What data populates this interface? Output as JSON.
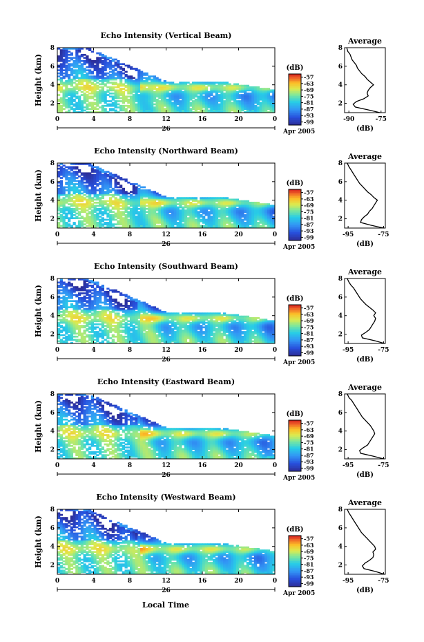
{
  "figure": {
    "time_axis_label": "Local Time",
    "date_day": "26",
    "date_label": "Apr 2005"
  },
  "chart_data": [
    {
      "type": "heatmap",
      "title": "Echo Intensity (Vertical Beam)",
      "ylabel": "Height (km)",
      "xlabel": "Local Time",
      "x_ticks": [
        "0",
        "4",
        "8",
        "12",
        "16",
        "20",
        "0"
      ],
      "y_ticks": [
        "2",
        "4",
        "6",
        "8"
      ],
      "xlim": [
        0,
        24
      ],
      "ylim": [
        1,
        8
      ],
      "colorbar": {
        "unit": "(dB)",
        "ticks": [
          "-57",
          "-63",
          "-69",
          "-75",
          "-81",
          "-87",
          "-93",
          "-99"
        ],
        "range": [
          -99,
          -57
        ]
      },
      "average_profile": {
        "title": "Average",
        "xlabel": "(dB)",
        "x_ticks": [
          "-90",
          "-75"
        ],
        "xlim": [
          -92,
          -73
        ],
        "y_ticks": [
          "2",
          "4",
          "6",
          "8"
        ],
        "ylim": [
          1,
          8
        ],
        "height_km": [
          1.0,
          1.3,
          1.6,
          1.9,
          2.2,
          2.5,
          2.8,
          3.1,
          3.4,
          3.7,
          4.0,
          4.3,
          4.6,
          4.9,
          5.2,
          5.5,
          5.8,
          6.1,
          6.4,
          6.7,
          7.0,
          7.3,
          7.6,
          8.0
        ],
        "db": [
          -75.5,
          -81,
          -87,
          -88,
          -86.5,
          -83,
          -81,
          -81.5,
          -81,
          -80,
          -78.5,
          -80,
          -81.5,
          -82.5,
          -84,
          -85,
          -86,
          -86.5,
          -87.5,
          -88.5,
          -89,
          -89.5,
          -90.5,
          -91
        ]
      }
    },
    {
      "type": "heatmap",
      "title": "Echo Intensity (Northward Beam)",
      "ylabel": "Height (km)",
      "xlabel": "Local Time",
      "x_ticks": [
        "0",
        "4",
        "8",
        "12",
        "16",
        "20",
        "0"
      ],
      "y_ticks": [
        "2",
        "4",
        "6",
        "8"
      ],
      "xlim": [
        0,
        24
      ],
      "ylim": [
        1,
        8
      ],
      "colorbar": {
        "unit": "(dB)",
        "ticks": [
          "-57",
          "-63",
          "-69",
          "-75",
          "-81",
          "-87",
          "-93",
          "-99"
        ],
        "range": [
          -99,
          -57
        ]
      },
      "average_profile": {
        "title": "Average",
        "xlabel": "(dB)",
        "x_ticks": [
          "-95",
          "-75"
        ],
        "xlim": [
          -97,
          -74
        ],
        "y_ticks": [
          "2",
          "4",
          "6",
          "8"
        ],
        "ylim": [
          1,
          8
        ],
        "height_km": [
          1.0,
          1.3,
          1.6,
          1.9,
          2.2,
          2.5,
          2.8,
          3.1,
          3.4,
          3.7,
          4.0,
          4.3,
          4.6,
          4.9,
          5.2,
          5.5,
          5.8,
          6.1,
          6.4,
          6.7,
          7.0,
          7.3,
          7.6,
          8.0
        ],
        "db": [
          -75,
          -82,
          -88,
          -87.5,
          -86,
          -84,
          -83,
          -81.5,
          -80.5,
          -79.5,
          -78.5,
          -80.5,
          -82,
          -84,
          -85.5,
          -87,
          -88.5,
          -89.5,
          -90.5,
          -91.5,
          -92.5,
          -93.5,
          -94.5,
          -95.5
        ]
      }
    },
    {
      "type": "heatmap",
      "title": "Echo Intensity (Southward Beam)",
      "ylabel": "Height (km)",
      "xlabel": "Local Time",
      "x_ticks": [
        "0",
        "4",
        "8",
        "12",
        "16",
        "20",
        "0"
      ],
      "y_ticks": [
        "2",
        "4",
        "6",
        "8"
      ],
      "xlim": [
        0,
        24
      ],
      "ylim": [
        1,
        8
      ],
      "colorbar": {
        "unit": "(dB)",
        "ticks": [
          "-57",
          "-63",
          "-69",
          "-75",
          "-81",
          "-87",
          "-93",
          "-99"
        ],
        "range": [
          -99,
          -57
        ]
      },
      "average_profile": {
        "title": "Average",
        "xlabel": "(dB)",
        "x_ticks": [
          "-95",
          "-75"
        ],
        "xlim": [
          -97,
          -74
        ],
        "y_ticks": [
          "2",
          "4",
          "6",
          "8"
        ],
        "ylim": [
          1,
          8
        ],
        "height_km": [
          1.0,
          1.3,
          1.6,
          1.9,
          2.2,
          2.5,
          2.8,
          3.1,
          3.4,
          3.7,
          4.0,
          4.3,
          4.6,
          4.9,
          5.2,
          5.5,
          5.8,
          6.1,
          6.4,
          6.7,
          7.0,
          7.3,
          7.6,
          8.0
        ],
        "db": [
          -74.5,
          -80,
          -87,
          -87.5,
          -85,
          -83,
          -82,
          -81,
          -80,
          -79.5,
          -80.5,
          -79.5,
          -81,
          -83,
          -85,
          -86.5,
          -88,
          -89,
          -90,
          -91,
          -92,
          -93.5,
          -94.5,
          -95.5
        ]
      }
    },
    {
      "type": "heatmap",
      "title": "Echo Intensity (Eastward Beam)",
      "ylabel": "Height (km)",
      "xlabel": "Local Time",
      "x_ticks": [
        "0",
        "4",
        "8",
        "12",
        "16",
        "20",
        "0"
      ],
      "y_ticks": [
        "2",
        "4",
        "6",
        "8"
      ],
      "xlim": [
        0,
        24
      ],
      "ylim": [
        1,
        8
      ],
      "colorbar": {
        "unit": "(dB)",
        "ticks": [
          "-57",
          "-63",
          "-69",
          "-75",
          "-81",
          "-87",
          "-93",
          "-99"
        ],
        "range": [
          -99,
          -57
        ]
      },
      "average_profile": {
        "title": "Average",
        "xlabel": "(dB)",
        "x_ticks": [
          "-95",
          "-75"
        ],
        "xlim": [
          -97,
          -74
        ],
        "y_ticks": [
          "2",
          "4",
          "6",
          "8"
        ],
        "ylim": [
          1,
          8
        ],
        "height_km": [
          1.0,
          1.3,
          1.6,
          1.9,
          2.2,
          2.5,
          2.8,
          3.1,
          3.4,
          3.7,
          4.0,
          4.3,
          4.6,
          4.9,
          5.2,
          5.5,
          5.8,
          6.1,
          6.4,
          6.7,
          7.0,
          7.3,
          7.6,
          8.0
        ],
        "db": [
          -75,
          -81,
          -88,
          -88.5,
          -86.5,
          -84,
          -83,
          -82,
          -81,
          -80,
          -80.5,
          -81.5,
          -82.5,
          -84,
          -85.5,
          -87,
          -88,
          -89,
          -90,
          -91,
          -92,
          -93,
          -94.5,
          -95.5
        ]
      }
    },
    {
      "type": "heatmap",
      "title": "Echo Intensity (Westward Beam)",
      "ylabel": "Height (km)",
      "xlabel": "Local Time",
      "x_ticks": [
        "0",
        "4",
        "8",
        "12",
        "16",
        "20",
        "0"
      ],
      "y_ticks": [
        "2",
        "4",
        "6",
        "8"
      ],
      "xlim": [
        0,
        24
      ],
      "ylim": [
        1,
        8
      ],
      "colorbar": {
        "unit": "(dB)",
        "ticks": [
          "-57",
          "-63",
          "-69",
          "-75",
          "-81",
          "-87",
          "-93",
          "-99"
        ],
        "range": [
          -99,
          -57
        ]
      },
      "average_profile": {
        "title": "Average",
        "xlabel": "(dB)",
        "x_ticks": [
          "-95",
          "-75"
        ],
        "xlim": [
          -97,
          -74
        ],
        "y_ticks": [
          "2",
          "4",
          "6",
          "8"
        ],
        "ylim": [
          1,
          8
        ],
        "height_km": [
          1.0,
          1.3,
          1.6,
          1.9,
          2.2,
          2.5,
          2.8,
          3.1,
          3.4,
          3.7,
          4.0,
          4.3,
          4.6,
          4.9,
          5.2,
          5.5,
          5.8,
          6.1,
          6.4,
          6.7,
          7.0,
          7.3,
          7.6,
          8.0
        ],
        "db": [
          -74.5,
          -79.5,
          -86,
          -87,
          -85.5,
          -83,
          -81,
          -80.5,
          -81,
          -79.5,
          -80,
          -81.5,
          -83,
          -84.5,
          -86,
          -87.5,
          -88.5,
          -89.5,
          -90.5,
          -91.5,
          -92.5,
          -93.5,
          -94.5,
          -95.5
        ]
      }
    }
  ]
}
